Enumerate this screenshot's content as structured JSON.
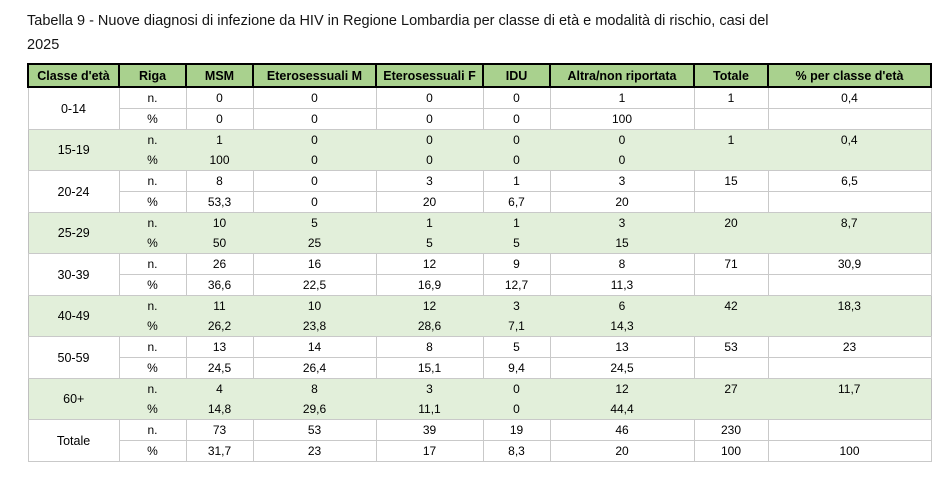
{
  "title": {
    "line1": "Tabella 9 - Nuove diagnosi di infezione da HIV in Regione Lombardia per classe di età e modalità di rischio, casi del",
    "line2": "2025",
    "full": "Tabella 9 - Nuove diagnosi di infezione da HIV in Regione Lombardia per classe di età e modalità di rischio, casi del 2025"
  },
  "colors": {
    "header_bg": "#a9d18e",
    "shaded_row_bg": "#e2efda",
    "grid_line": "#c9c9c9",
    "header_border": "#000000"
  },
  "table": {
    "columns": [
      "Classe d'età",
      "Riga",
      "MSM",
      "Eterosessuali M",
      "Eterosessuali F",
      "IDU",
      "Altra/non riportata",
      "Totale",
      "% per classe d'età"
    ],
    "row_labels": {
      "n": "n.",
      "pct": "%"
    },
    "groups": [
      {
        "age": "0-14",
        "shaded": false,
        "n": [
          "0",
          "0",
          "0",
          "0",
          "1",
          "1",
          "0,4"
        ],
        "pct": [
          "0",
          "0",
          "0",
          "0",
          "100",
          "",
          ""
        ]
      },
      {
        "age": "15-19",
        "shaded": true,
        "n": [
          "1",
          "0",
          "0",
          "0",
          "0",
          "1",
          "0,4"
        ],
        "pct": [
          "100",
          "0",
          "0",
          "0",
          "0",
          "",
          ""
        ]
      },
      {
        "age": "20-24",
        "shaded": false,
        "n": [
          "8",
          "0",
          "3",
          "1",
          "3",
          "15",
          "6,5"
        ],
        "pct": [
          "53,3",
          "0",
          "20",
          "6,7",
          "20",
          "",
          ""
        ]
      },
      {
        "age": "25-29",
        "shaded": true,
        "n": [
          "10",
          "5",
          "1",
          "1",
          "3",
          "20",
          "8,7"
        ],
        "pct": [
          "50",
          "25",
          "5",
          "5",
          "15",
          "",
          ""
        ]
      },
      {
        "age": "30-39",
        "shaded": false,
        "n": [
          "26",
          "16",
          "12",
          "9",
          "8",
          "71",
          "30,9"
        ],
        "pct": [
          "36,6",
          "22,5",
          "16,9",
          "12,7",
          "11,3",
          "",
          ""
        ]
      },
      {
        "age": "40-49",
        "shaded": true,
        "n": [
          "11",
          "10",
          "12",
          "3",
          "6",
          "42",
          "18,3"
        ],
        "pct": [
          "26,2",
          "23,8",
          "28,6",
          "7,1",
          "14,3",
          "",
          ""
        ]
      },
      {
        "age": "50-59",
        "shaded": false,
        "n": [
          "13",
          "14",
          "8",
          "5",
          "13",
          "53",
          "23"
        ],
        "pct": [
          "24,5",
          "26,4",
          "15,1",
          "9,4",
          "24,5",
          "",
          ""
        ]
      },
      {
        "age": "60+",
        "shaded": true,
        "n": [
          "4",
          "8",
          "3",
          "0",
          "12",
          "27",
          "11,7"
        ],
        "pct": [
          "14,8",
          "29,6",
          "11,1",
          "0",
          "44,4",
          "",
          ""
        ]
      },
      {
        "age": "Totale",
        "shaded": false,
        "n": [
          "73",
          "53",
          "39",
          "19",
          "46",
          "230",
          ""
        ],
        "pct": [
          "31,7",
          "23",
          "17",
          "8,3",
          "20",
          "100",
          "100"
        ]
      }
    ]
  }
}
